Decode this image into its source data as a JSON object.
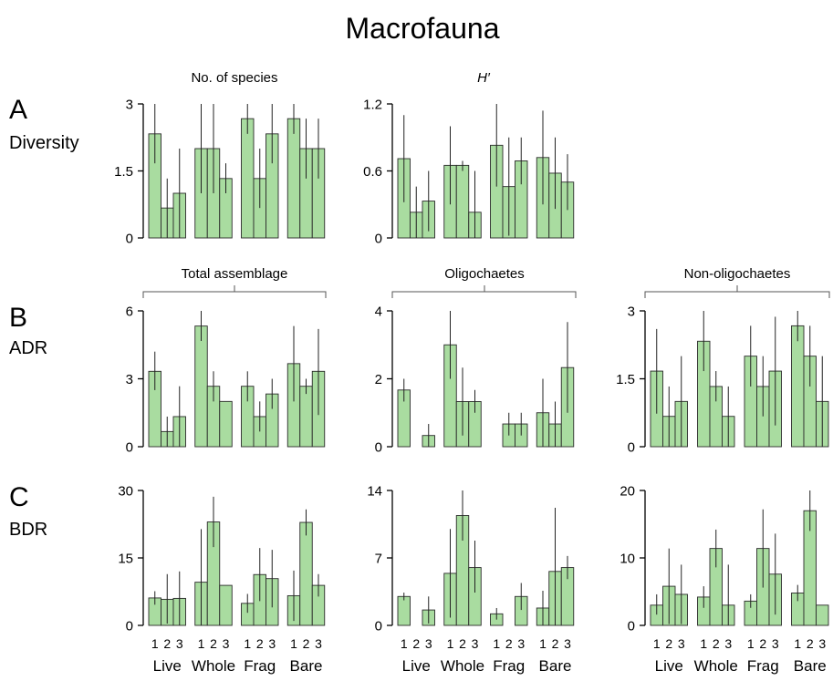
{
  "figure_title": "Macrofauna",
  "rows": {
    "A": {
      "letter": "A",
      "label": "Diversity"
    },
    "B": {
      "letter": "B",
      "label": "ADR"
    },
    "C": {
      "letter": "C",
      "label": "BDR"
    }
  },
  "group_headers": {
    "total": "Total assemblage",
    "oligo": "Oligochaetes",
    "nonoligo": "Non-oligochaetes"
  },
  "x_axis": {
    "sublabels": [
      "1",
      "2",
      "3"
    ],
    "groups": [
      "Live",
      "Whole",
      "Frag",
      "Bare"
    ]
  },
  "colors": {
    "bar_fill": "#a9dca0",
    "bar_stroke": "#2a2a2a",
    "axis": "#000000"
  },
  "chart_data": [
    {
      "id": "A1",
      "type": "bar",
      "title": "No. of species",
      "ylim": [
        0,
        3
      ],
      "yticks": [
        "0",
        "1.5",
        "3"
      ],
      "categories": [
        "Live",
        "Whole",
        "Frag",
        "Bare"
      ],
      "series_labels": [
        "1",
        "2",
        "3"
      ],
      "values": [
        [
          2.33,
          0.67,
          1.0
        ],
        [
          2.0,
          2.0,
          1.33
        ],
        [
          2.67,
          1.33,
          2.33
        ],
        [
          2.67,
          2.0,
          2.0
        ]
      ],
      "error_high": [
        [
          3.0,
          1.33,
          2.0
        ],
        [
          3.0,
          3.0,
          1.67
        ],
        [
          3.0,
          2.0,
          3.0
        ],
        [
          3.0,
          2.67,
          2.67
        ]
      ],
      "error_low": [
        [
          1.67,
          0,
          0
        ],
        [
          1.0,
          1.0,
          1.0
        ],
        [
          2.33,
          0.67,
          1.67
        ],
        [
          2.33,
          1.33,
          1.33
        ]
      ]
    },
    {
      "id": "A2",
      "type": "bar",
      "title": "H′",
      "title_italic": true,
      "ylim": [
        0,
        1.2
      ],
      "yticks": [
        "0",
        "0.6",
        "1.2"
      ],
      "categories": [
        "Live",
        "Whole",
        "Frag",
        "Bare"
      ],
      "series_labels": [
        "1",
        "2",
        "3"
      ],
      "values": [
        [
          0.71,
          0.23,
          0.33
        ],
        [
          0.65,
          0.65,
          0.23
        ],
        [
          0.83,
          0.46,
          0.69
        ],
        [
          0.72,
          0.58,
          0.5
        ]
      ],
      "error_high": [
        [
          1.1,
          0.46,
          0.6
        ],
        [
          1.0,
          0.69,
          0.6
        ],
        [
          1.2,
          0.9,
          0.9
        ],
        [
          1.14,
          0.9,
          0.75
        ]
      ],
      "error_low": [
        [
          0.32,
          0,
          0.06
        ],
        [
          0.3,
          0.6,
          0
        ],
        [
          0.46,
          0.02,
          0.48
        ],
        [
          0.3,
          0.26,
          0.25
        ]
      ]
    },
    {
      "id": "B1",
      "type": "bar",
      "ylim": [
        0,
        6
      ],
      "yticks": [
        "0",
        "3",
        "6"
      ],
      "categories": [
        "Live",
        "Whole",
        "Frag",
        "Bare"
      ],
      "series_labels": [
        "1",
        "2",
        "3"
      ],
      "values": [
        [
          3.33,
          0.67,
          1.33
        ],
        [
          5.33,
          2.67,
          2.0
        ],
        [
          2.67,
          1.33,
          2.33
        ],
        [
          3.67,
          2.67,
          3.33
        ]
      ],
      "error_high": [
        [
          4.2,
          1.33,
          2.67
        ],
        [
          6.0,
          3.33,
          2.0
        ],
        [
          3.33,
          2.0,
          3.0
        ],
        [
          5.33,
          3.0,
          5.2
        ]
      ],
      "error_low": [
        [
          2.5,
          0,
          0
        ],
        [
          4.67,
          2.0,
          2.0
        ],
        [
          2.0,
          0.67,
          1.67
        ],
        [
          2.0,
          2.33,
          1.4
        ]
      ]
    },
    {
      "id": "B2",
      "type": "bar",
      "ylim": [
        0,
        4
      ],
      "yticks": [
        "0",
        "2",
        "4"
      ],
      "categories": [
        "Live",
        "Whole",
        "Frag",
        "Bare"
      ],
      "series_labels": [
        "1",
        "2",
        "3"
      ],
      "values": [
        [
          1.67,
          0,
          0.33
        ],
        [
          3.0,
          1.33,
          1.33
        ],
        [
          0,
          0.67,
          0.67
        ],
        [
          1.0,
          0.67,
          2.33
        ]
      ],
      "error_high": [
        [
          2.0,
          0,
          0.67
        ],
        [
          4.0,
          2.33,
          1.67
        ],
        [
          0,
          1.0,
          1.0
        ],
        [
          2.0,
          1.33,
          3.67
        ]
      ],
      "error_low": [
        [
          1.33,
          0,
          0
        ],
        [
          2.0,
          0.33,
          1.0
        ],
        [
          0,
          0.33,
          0.33
        ],
        [
          0,
          0,
          1.0
        ]
      ]
    },
    {
      "id": "B3",
      "type": "bar",
      "ylim": [
        0,
        3
      ],
      "yticks": [
        "0",
        "1.5",
        "3"
      ],
      "categories": [
        "Live",
        "Whole",
        "Frag",
        "Bare"
      ],
      "series_labels": [
        "1",
        "2",
        "3"
      ],
      "values": [
        [
          1.67,
          0.67,
          1.0
        ],
        [
          2.33,
          1.33,
          0.67
        ],
        [
          2.0,
          1.33,
          1.67
        ],
        [
          2.67,
          2.0,
          1.0
        ]
      ],
      "error_high": [
        [
          2.6,
          1.33,
          2.0
        ],
        [
          3.0,
          1.67,
          1.33
        ],
        [
          2.67,
          2.0,
          2.87
        ],
        [
          3.0,
          2.67,
          2.0
        ]
      ],
      "error_low": [
        [
          0.73,
          0,
          0
        ],
        [
          1.67,
          1.0,
          0
        ],
        [
          1.33,
          0.67,
          0.47
        ],
        [
          2.33,
          1.33,
          0
        ]
      ]
    },
    {
      "id": "C1",
      "type": "bar",
      "ylim": [
        0,
        30
      ],
      "yticks": [
        "0",
        "15",
        "30"
      ],
      "categories": [
        "Live",
        "Whole",
        "Frag",
        "Bare"
      ],
      "series_labels": [
        "1",
        "2",
        "3"
      ],
      "values": [
        [
          6.1,
          5.8,
          6.0
        ],
        [
          9.6,
          23.0,
          8.9
        ],
        [
          4.9,
          11.3,
          10.4
        ],
        [
          6.6,
          22.9,
          8.9
        ]
      ],
      "error_high": [
        [
          7.6,
          11.4,
          12.0
        ],
        [
          21.4,
          28.6,
          8.9
        ],
        [
          7.0,
          17.2,
          16.8
        ],
        [
          12.2,
          25.8,
          11.4
        ]
      ],
      "error_low": [
        [
          4.6,
          0.4,
          0
        ],
        [
          0,
          17.4,
          8.9
        ],
        [
          2.8,
          5.4,
          4.0
        ],
        [
          1.0,
          20.0,
          6.4
        ]
      ]
    },
    {
      "id": "C2",
      "type": "bar",
      "ylim": [
        0,
        14
      ],
      "yticks": [
        "0",
        "7",
        "14"
      ],
      "categories": [
        "Live",
        "Whole",
        "Frag",
        "Bare"
      ],
      "series_labels": [
        "1",
        "2",
        "3"
      ],
      "values": [
        [
          3.0,
          0,
          1.6
        ],
        [
          5.4,
          11.4,
          6.0
        ],
        [
          1.2,
          0,
          3.0
        ],
        [
          1.8,
          5.6,
          6.0
        ]
      ],
      "error_high": [
        [
          3.4,
          0,
          3.0
        ],
        [
          10.0,
          14.0,
          8.8
        ],
        [
          1.8,
          0,
          4.4
        ],
        [
          3.6,
          12.2,
          7.2
        ]
      ],
      "error_low": [
        [
          2.6,
          0,
          0.2
        ],
        [
          0.8,
          8.8,
          3.4
        ],
        [
          0.6,
          0,
          1.6
        ],
        [
          0,
          0,
          4.8
        ]
      ]
    },
    {
      "id": "C3",
      "type": "bar",
      "ylim": [
        0,
        20
      ],
      "yticks": [
        "0",
        "10",
        "20"
      ],
      "categories": [
        "Live",
        "Whole",
        "Frag",
        "Bare"
      ],
      "series_labels": [
        "1",
        "2",
        "3"
      ],
      "values": [
        [
          3.0,
          5.8,
          4.6
        ],
        [
          4.2,
          11.4,
          3.0
        ],
        [
          3.6,
          11.4,
          7.6
        ],
        [
          4.8,
          17.0,
          3.0
        ]
      ],
      "error_high": [
        [
          4.6,
          11.4,
          9.0
        ],
        [
          5.8,
          14.2,
          9.0
        ],
        [
          4.6,
          17.2,
          13.6
        ],
        [
          6.0,
          20.0,
          3.0
        ]
      ],
      "error_low": [
        [
          1.6,
          0.2,
          0.2
        ],
        [
          2.6,
          8.6,
          0
        ],
        [
          2.6,
          5.6,
          1.6
        ],
        [
          3.6,
          14.0,
          3.0
        ]
      ]
    }
  ]
}
